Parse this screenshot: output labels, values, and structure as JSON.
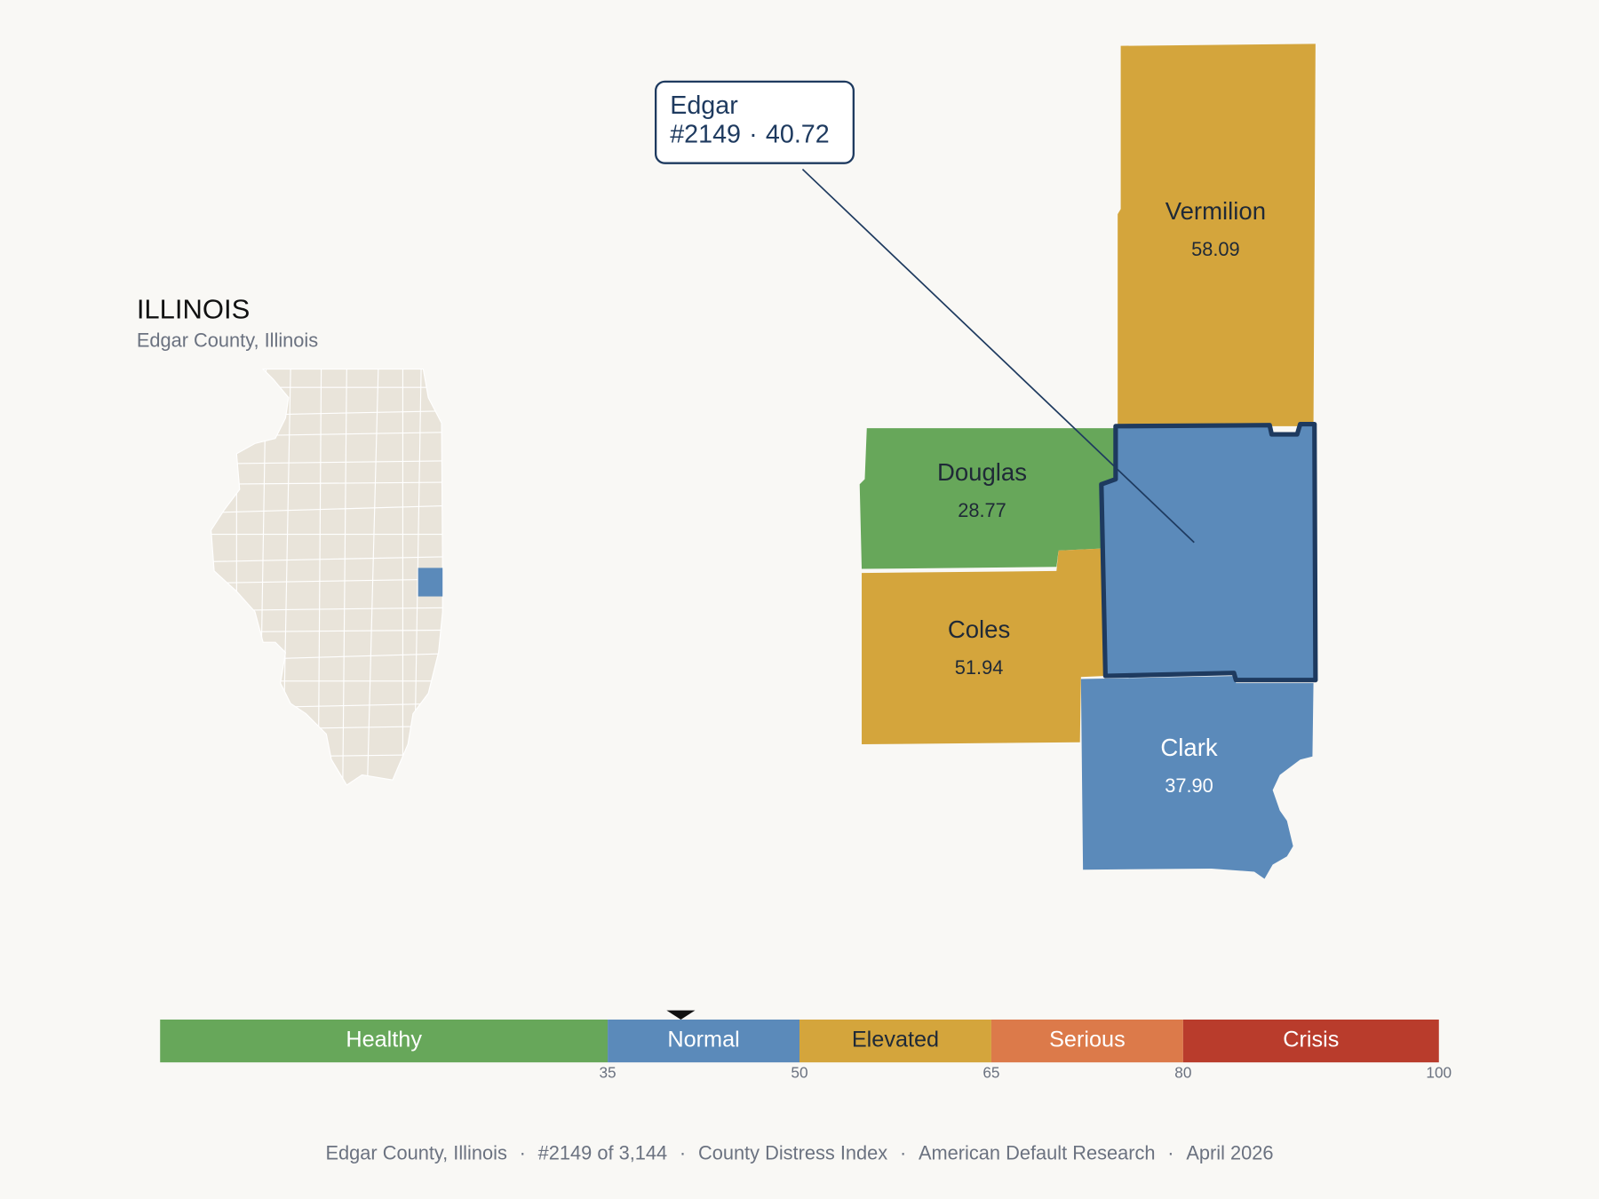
{
  "header": {
    "title": "ILLINOIS",
    "subtitle": "Edgar County, Illinois"
  },
  "selected": {
    "name": "Edgar",
    "rank": "#2149",
    "value": 40.72
  },
  "counties": [
    {
      "name": "Vermilion",
      "value": 58.09
    },
    {
      "name": "Douglas",
      "value": 28.77
    },
    {
      "name": "Coles",
      "value": 51.94
    },
    {
      "name": "Clark",
      "value": 37.9,
      "value_label": "37.90"
    }
  ],
  "scale": {
    "lim": [
      0,
      100
    ],
    "ticks": [
      35,
      50,
      65,
      80,
      100
    ],
    "bands": [
      {
        "label": "Healthy",
        "color": "#67a75a",
        "text_color": "#ffffff"
      },
      {
        "label": "Normal",
        "color": "#5b8aba",
        "text_color": "#ffffff"
      },
      {
        "label": "Elevated",
        "color": "#d4a53c",
        "text_color": "#1f2937"
      },
      {
        "label": "Serious",
        "color": "#dc7a4a",
        "text_color": "#ffffff"
      },
      {
        "label": "Crisis",
        "color": "#b93c2c",
        "text_color": "#ffffff"
      }
    ]
  },
  "footer": {
    "separator": "·",
    "items": [
      "Edgar County, Illinois",
      "#2149 of 3,144",
      "County Distress Index",
      "American Default Research",
      "April 2026"
    ]
  }
}
